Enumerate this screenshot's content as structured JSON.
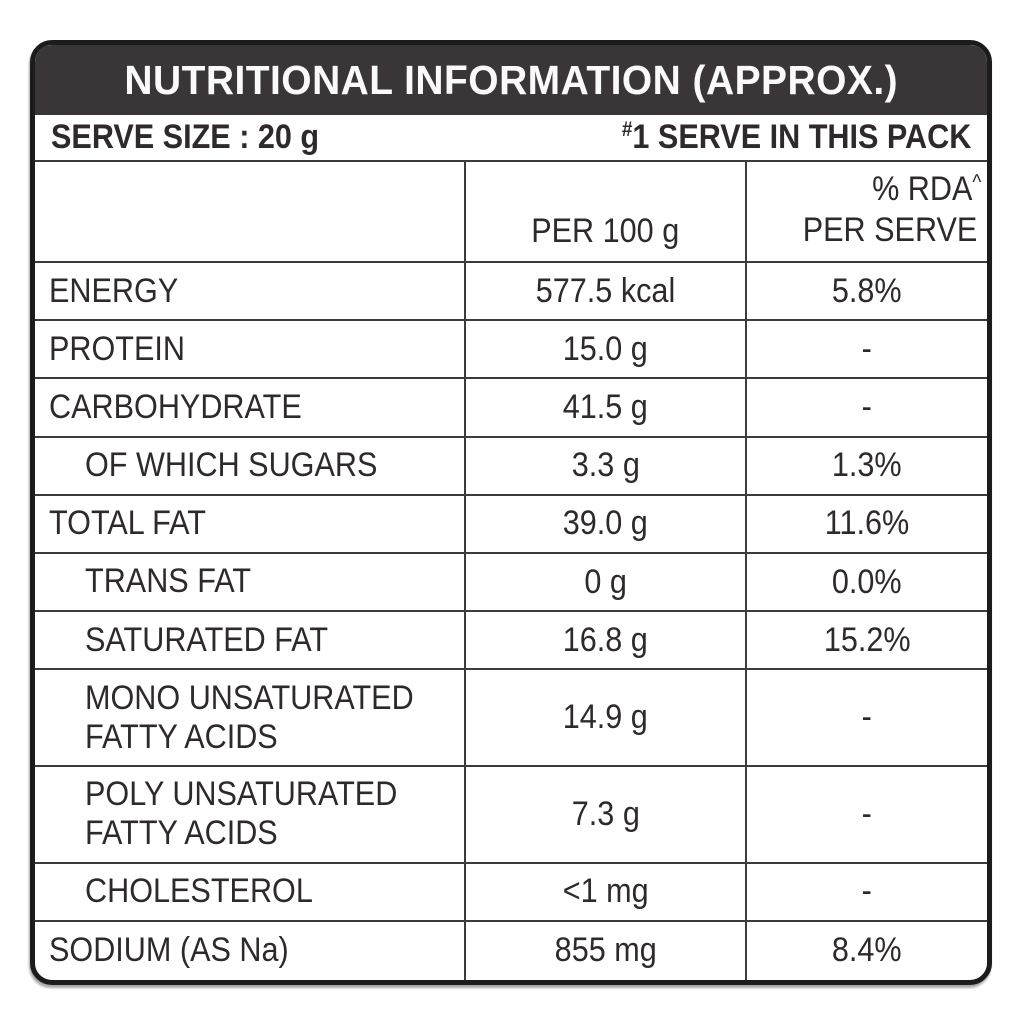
{
  "label": {
    "title": "NUTRITIONAL INFORMATION (APPROX.)",
    "serve": {
      "size_text": "SERVE SIZE : 20 g",
      "pack_marker": "#",
      "pack_text": "1 SERVE IN THIS PACK"
    },
    "columns": {
      "per_100": "PER 100 g",
      "rda_line1": "% RDA",
      "rda_sup": "^",
      "rda_line2": "PER SERVE"
    },
    "rows": [
      {
        "label": "ENERGY",
        "per100": "577.5 kcal",
        "rda": "5.8%",
        "indent": false
      },
      {
        "label": "PROTEIN",
        "per100": "15.0 g",
        "rda": "-",
        "indent": false
      },
      {
        "label": "CARBOHYDRATE",
        "per100": "41.5 g",
        "rda": "-",
        "indent": false
      },
      {
        "label": "OF WHICH SUGARS",
        "per100": "3.3 g",
        "rda": "1.3%",
        "indent": true
      },
      {
        "label": "TOTAL FAT",
        "per100": "39.0 g",
        "rda": "11.6%",
        "indent": false
      },
      {
        "label": "TRANS FAT",
        "per100": "0 g",
        "rda": "0.0%",
        "indent": true
      },
      {
        "label": "SATURATED FAT",
        "per100": "16.8 g",
        "rda": "15.2%",
        "indent": true
      },
      {
        "label": "MONO UNSATURATED\nFATTY ACIDS",
        "per100": "14.9 g",
        "rda": "-",
        "indent": true
      },
      {
        "label": "POLY UNSATURATED\nFATTY ACIDS",
        "per100": "7.3 g",
        "rda": "-",
        "indent": true
      },
      {
        "label": "CHOLESTEROL",
        "per100": "<1 mg",
        "rda": "-",
        "indent": true
      },
      {
        "label": "SODIUM (AS Na)",
        "per100": "855 mg",
        "rda": "8.4%",
        "indent": false
      }
    ]
  },
  "colors": {
    "band_bg": "#3a3637",
    "text": "#2e2a2b",
    "grid_line": "#3c3c3c",
    "frame": "#1c1c1c",
    "background": "#ffffff",
    "title_color": "#fafafa"
  }
}
